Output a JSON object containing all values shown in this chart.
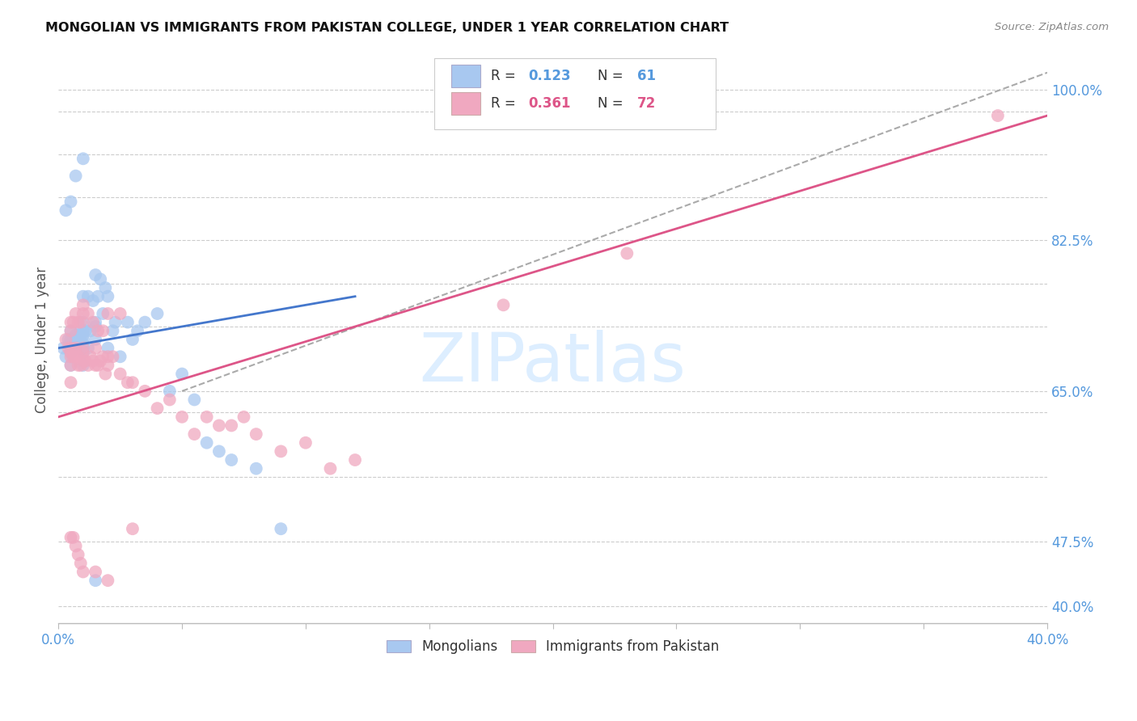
{
  "title": "MONGOLIAN VS IMMIGRANTS FROM PAKISTAN COLLEGE, UNDER 1 YEAR CORRELATION CHART",
  "source": "Source: ZipAtlas.com",
  "ylabel": "College, Under 1 year",
  "xlim": [
    0.0,
    0.4
  ],
  "ylim": [
    0.38,
    1.04
  ],
  "ytick_positions": [
    0.4,
    0.475,
    0.55,
    0.625,
    0.65,
    0.725,
    0.775,
    0.825,
    0.875,
    0.925,
    0.975,
    1.0
  ],
  "right_ytick_positions": [
    0.4,
    0.475,
    0.65,
    0.825,
    1.0
  ],
  "right_ytick_labels": [
    "40.0%",
    "47.5%",
    "65.0%",
    "82.5%",
    "100.0%"
  ],
  "xtick_positions": [
    0.0,
    0.05,
    0.1,
    0.15,
    0.2,
    0.25,
    0.3,
    0.35,
    0.4
  ],
  "xtick_labels": [
    "0.0%",
    "",
    "",
    "",
    "",
    "",
    "",
    "",
    "40.0%"
  ],
  "grid_color": "#cccccc",
  "background_color": "#ffffff",
  "mongolian_color": "#a8c8f0",
  "pakistan_color": "#f0a8c0",
  "mongolian_line_color": "#4477cc",
  "pakistan_line_color": "#dd5588",
  "trendline_color": "#aaaaaa",
  "tick_color": "#5599dd",
  "watermark_text": "ZIPatlas",
  "watermark_color": "#ddeeff",
  "legend_r1_label": "R = ",
  "legend_r1_val": "0.123",
  "legend_n1_label": "N = ",
  "legend_n1_val": "61",
  "legend_r2_label": "R = ",
  "legend_r2_val": "0.361",
  "legend_n2_label": "N = ",
  "legend_n2_val": "72",
  "mongolian_x": [
    0.002,
    0.003,
    0.004,
    0.005,
    0.005,
    0.005,
    0.005,
    0.005,
    0.005,
    0.005,
    0.007,
    0.007,
    0.008,
    0.008,
    0.009,
    0.009,
    0.01,
    0.01,
    0.01,
    0.01,
    0.01,
    0.01,
    0.01,
    0.01,
    0.01,
    0.011,
    0.012,
    0.012,
    0.013,
    0.014,
    0.015,
    0.015,
    0.015,
    0.015,
    0.016,
    0.017,
    0.018,
    0.019,
    0.02,
    0.02,
    0.022,
    0.023,
    0.025,
    0.028,
    0.03,
    0.032,
    0.035,
    0.04,
    0.045,
    0.05,
    0.055,
    0.06,
    0.065,
    0.07,
    0.08,
    0.09,
    0.003,
    0.005,
    0.007,
    0.01,
    0.015
  ],
  "mongolian_y": [
    0.7,
    0.69,
    0.71,
    0.695,
    0.7,
    0.705,
    0.695,
    0.71,
    0.72,
    0.68,
    0.705,
    0.715,
    0.71,
    0.7,
    0.715,
    0.72,
    0.7,
    0.705,
    0.71,
    0.72,
    0.73,
    0.68,
    0.695,
    0.715,
    0.76,
    0.72,
    0.7,
    0.76,
    0.72,
    0.755,
    0.71,
    0.725,
    0.73,
    0.785,
    0.76,
    0.78,
    0.74,
    0.77,
    0.7,
    0.76,
    0.72,
    0.73,
    0.69,
    0.73,
    0.71,
    0.72,
    0.73,
    0.74,
    0.65,
    0.67,
    0.64,
    0.59,
    0.58,
    0.57,
    0.56,
    0.49,
    0.86,
    0.87,
    0.9,
    0.92,
    0.43
  ],
  "pakistan_x": [
    0.003,
    0.004,
    0.005,
    0.005,
    0.005,
    0.005,
    0.005,
    0.006,
    0.007,
    0.007,
    0.008,
    0.008,
    0.009,
    0.01,
    0.01,
    0.01,
    0.011,
    0.012,
    0.013,
    0.014,
    0.015,
    0.015,
    0.016,
    0.017,
    0.018,
    0.019,
    0.02,
    0.02,
    0.022,
    0.025,
    0.028,
    0.03,
    0.035,
    0.04,
    0.045,
    0.05,
    0.055,
    0.06,
    0.065,
    0.07,
    0.075,
    0.08,
    0.09,
    0.1,
    0.11,
    0.12,
    0.005,
    0.005,
    0.006,
    0.007,
    0.008,
    0.009,
    0.01,
    0.01,
    0.012,
    0.014,
    0.016,
    0.018,
    0.02,
    0.025,
    0.006,
    0.007,
    0.008,
    0.009,
    0.01,
    0.015,
    0.02,
    0.03,
    0.18,
    0.23,
    0.38,
    0.005
  ],
  "pakistan_y": [
    0.71,
    0.7,
    0.695,
    0.68,
    0.7,
    0.66,
    0.69,
    0.69,
    0.7,
    0.69,
    0.68,
    0.69,
    0.68,
    0.685,
    0.7,
    0.695,
    0.685,
    0.68,
    0.69,
    0.685,
    0.68,
    0.7,
    0.68,
    0.685,
    0.69,
    0.67,
    0.69,
    0.68,
    0.69,
    0.67,
    0.66,
    0.66,
    0.65,
    0.63,
    0.64,
    0.62,
    0.6,
    0.62,
    0.61,
    0.61,
    0.62,
    0.6,
    0.58,
    0.59,
    0.56,
    0.57,
    0.73,
    0.72,
    0.73,
    0.74,
    0.73,
    0.73,
    0.74,
    0.75,
    0.74,
    0.73,
    0.72,
    0.72,
    0.74,
    0.74,
    0.48,
    0.47,
    0.46,
    0.45,
    0.44,
    0.44,
    0.43,
    0.49,
    0.75,
    0.81,
    0.97,
    0.48
  ],
  "mong_trend_x": [
    0.0,
    0.12
  ],
  "mong_trend_y": [
    0.7,
    0.76
  ],
  "pak_trend_x": [
    0.0,
    0.4
  ],
  "pak_trend_y": [
    0.62,
    0.97
  ],
  "dash_trend_x": [
    0.05,
    0.4
  ],
  "dash_trend_y": [
    0.65,
    1.02
  ]
}
